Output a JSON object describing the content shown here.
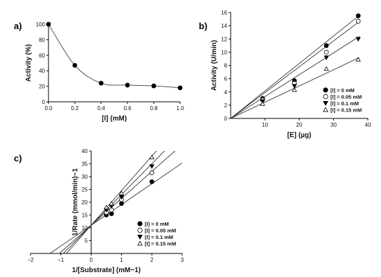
{
  "chart_data": [
    {
      "type": "line",
      "panel_label": "a)",
      "xlabel": "[I] (mM)",
      "ylabel": "Activity (%)",
      "xlim": [
        0.0,
        1.0
      ],
      "ylim": [
        0,
        100
      ],
      "xticks": [
        "0.0",
        "0.2",
        "0.4",
        "0.6",
        "0.8",
        "1.0"
      ],
      "yticks": [
        "0",
        "20",
        "40",
        "60",
        "80",
        "100"
      ],
      "series": [
        {
          "marker": "filled-circle",
          "x": [
            0.0,
            0.2,
            0.4,
            0.6,
            0.8,
            1.0
          ],
          "y": [
            100,
            47,
            24,
            21.5,
            20.5,
            18
          ]
        }
      ],
      "curve": "smooth"
    },
    {
      "type": "scatter",
      "panel_label": "b)",
      "xlabel": "[E] (µg)",
      "ylabel": "Activity (U/min)",
      "xlim": [
        0,
        40
      ],
      "ylim": [
        0,
        16
      ],
      "xticks": [
        "10",
        "20",
        "30",
        "40"
      ],
      "yticks": [
        "0",
        "2",
        "4",
        "6",
        "8",
        "10",
        "12",
        "14",
        "16"
      ],
      "legend_position": "right",
      "series": [
        {
          "name": "[I] = 0 mM",
          "marker": "filled-circle",
          "x": [
            9.3,
            18.6,
            27.9,
            37.2
          ],
          "y": [
            3.0,
            5.7,
            11.0,
            15.5
          ],
          "fit": [
            0,
            0.415
          ]
        },
        {
          "name": "[I] = 0.05 mM",
          "marker": "open-circle",
          "x": [
            9.3,
            18.6,
            27.9,
            37.2
          ],
          "y": [
            2.8,
            5.3,
            10.0,
            14.7
          ],
          "fit": [
            0,
            0.39
          ]
        },
        {
          "name": "[I] = 0.1 mM",
          "marker": "filled-triangle-down",
          "x": [
            9.3,
            18.6,
            27.9,
            37.2
          ],
          "y": [
            2.6,
            4.9,
            9.2,
            12.0
          ],
          "fit": [
            0,
            0.33
          ]
        },
        {
          "name": "[I] = 0.15 mM",
          "marker": "open-triangle-up",
          "x": [
            9.3,
            18.6,
            27.9,
            37.2
          ],
          "y": [
            2.2,
            4.3,
            7.5,
            8.9
          ],
          "fit": [
            0,
            0.245
          ]
        }
      ]
    },
    {
      "type": "scatter",
      "panel_label": "c)",
      "xlabel": "1/[Substrate] (mM−1)",
      "ylabel": "1/Rate (mmol/min)−1",
      "xlim": [
        -2,
        3
      ],
      "ylim": [
        0,
        40
      ],
      "xticks": [
        "−2",
        "−1",
        "0",
        "1",
        "2",
        "3"
      ],
      "yticks": [
        "5",
        "10",
        "15",
        "20",
        "25",
        "30",
        "35",
        "40"
      ],
      "legend_position": "bottom-right",
      "series": [
        {
          "name": "[I] = 0 mM",
          "marker": "filled-circle",
          "x": [
            0.5,
            0.67,
            1.0,
            2.0
          ],
          "y": [
            15.0,
            15.5,
            19.5,
            28.0
          ],
          "fit": [
            11,
            8.1
          ]
        },
        {
          "name": "[I] = 0.05 mM",
          "marker": "open-circle",
          "x": [
            0.5,
            0.67,
            1.0,
            2.0
          ],
          "y": [
            16.0,
            17.0,
            21.0,
            31.5
          ],
          "fit": [
            11,
            10.5
          ]
        },
        {
          "name": "[I] = 0.1 mM",
          "marker": "filled-triangle-down",
          "x": [
            0.5,
            0.67,
            1.0,
            2.0
          ],
          "y": [
            17.0,
            18.5,
            22.0,
            34.0
          ],
          "fit": [
            11,
            12.0
          ]
        },
        {
          "name": "[I] = 0.15 mM",
          "marker": "open-triangle-up",
          "x": [
            0.5,
            0.67,
            1.0,
            2.0
          ],
          "y": [
            18.0,
            19.5,
            23.5,
            37.5
          ],
          "fit": [
            11,
            13.5
          ]
        }
      ]
    }
  ]
}
